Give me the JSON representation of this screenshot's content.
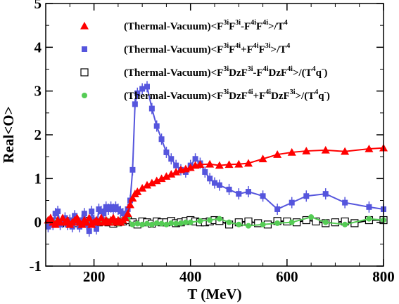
{
  "chart_data": {
    "type": "line",
    "xlabel": "T (MeV)",
    "ylabel": "Real<O>",
    "xlim": [
      100,
      800
    ],
    "ylim": [
      -1,
      5
    ],
    "x_ticks": [
      200,
      400,
      600,
      800
    ],
    "y_ticks": [
      -1,
      0,
      1,
      2,
      3,
      4,
      5
    ],
    "grid": false,
    "legend_position": "top-center",
    "series": [
      {
        "name": "(Thermal-Vacuum)<F^{3i}F^{3i}-F^{4i}F^{4i}>/T^4",
        "color": "#ff0000",
        "marker": "triangle",
        "x": [
          105,
          110,
          115,
          120,
          125,
          130,
          135,
          140,
          145,
          150,
          155,
          160,
          165,
          170,
          175,
          180,
          185,
          190,
          195,
          200,
          205,
          210,
          215,
          220,
          225,
          230,
          235,
          240,
          245,
          250,
          255,
          260,
          265,
          270,
          275,
          280,
          285,
          290,
          300,
          310,
          320,
          330,
          340,
          350,
          360,
          370,
          380,
          390,
          400,
          410,
          420,
          440,
          460,
          480,
          500,
          520,
          550,
          580,
          610,
          640,
          680,
          720,
          770,
          800
        ],
        "y": [
          0.05,
          0.1,
          0.0,
          -0.05,
          0.05,
          0.0,
          0.1,
          0.0,
          0.05,
          -0.05,
          0.0,
          0.05,
          0.1,
          0.0,
          -0.05,
          0.05,
          0.0,
          0.1,
          -0.05,
          0.0,
          0.05,
          0.0,
          0.1,
          0.0,
          0.05,
          0.0,
          0.05,
          0.1,
          0.0,
          0.05,
          0.0,
          0.05,
          0.1,
          0.2,
          0.4,
          0.55,
          0.65,
          0.7,
          0.78,
          0.85,
          0.9,
          0.95,
          1.0,
          1.05,
          1.1,
          1.15,
          1.2,
          1.22,
          1.25,
          1.3,
          1.32,
          1.33,
          1.3,
          1.32,
          1.33,
          1.35,
          1.45,
          1.55,
          1.6,
          1.63,
          1.65,
          1.62,
          1.68,
          1.7
        ]
      },
      {
        "name": "(Thermal-Vacuum)<F^{3i}F^{4i}+F^{4i}F^{3i}>/T^4",
        "color": "#5555dd",
        "marker": "square",
        "x": [
          105,
          110,
          115,
          120,
          125,
          130,
          135,
          140,
          145,
          150,
          155,
          160,
          165,
          170,
          175,
          180,
          185,
          190,
          195,
          200,
          205,
          210,
          215,
          220,
          225,
          230,
          235,
          240,
          245,
          250,
          255,
          260,
          265,
          270,
          275,
          280,
          285,
          290,
          300,
          310,
          320,
          330,
          340,
          350,
          360,
          370,
          380,
          390,
          400,
          410,
          420,
          430,
          440,
          450,
          460,
          480,
          500,
          520,
          550,
          580,
          610,
          640,
          680,
          720,
          770,
          800
        ],
        "y": [
          -0.1,
          0.05,
          -0.05,
          0.2,
          0.25,
          -0.05,
          0.0,
          0.1,
          -0.05,
          0.05,
          -0.1,
          0.15,
          0.0,
          -0.1,
          0.05,
          0.2,
          -0.05,
          -0.2,
          0.25,
          0.05,
          -0.15,
          0.3,
          0.25,
          0.2,
          0.35,
          0.3,
          0.35,
          0.3,
          0.35,
          0.3,
          0.25,
          0.2,
          0.15,
          0.3,
          0.5,
          1.2,
          2.7,
          2.95,
          3.05,
          3.1,
          2.6,
          2.2,
          1.9,
          1.6,
          1.45,
          1.3,
          1.2,
          1.15,
          1.3,
          1.45,
          1.35,
          1.15,
          1.0,
          0.9,
          0.85,
          0.75,
          0.65,
          0.7,
          0.6,
          0.3,
          0.45,
          0.6,
          0.65,
          0.45,
          0.35,
          0.3
        ]
      },
      {
        "name": "(Thermal-Vacuum)<F^{3i}DzF^{3i}-F^{4i}DzF^{4i}>/(T^4q^-)",
        "color": "#000000",
        "marker": "open-square",
        "x": [
          110,
          120,
          130,
          140,
          150,
          160,
          170,
          180,
          190,
          200,
          210,
          220,
          230,
          240,
          250,
          260,
          270,
          280,
          290,
          300,
          310,
          320,
          330,
          340,
          350,
          360,
          370,
          380,
          390,
          400,
          410,
          420,
          430,
          440,
          450,
          460,
          480,
          500,
          520,
          540,
          560,
          580,
          600,
          620,
          640,
          660,
          680,
          700,
          720,
          740,
          770,
          800
        ],
        "y": [
          0.0,
          0.02,
          -0.02,
          0.03,
          0.0,
          -0.02,
          0.02,
          0.0,
          0.03,
          -0.02,
          0.0,
          0.02,
          0.0,
          -0.03,
          0.0,
          0.02,
          0.05,
          0.0,
          -0.05,
          0.02,
          0.0,
          -0.03,
          0.02,
          0.0,
          0.0,
          0.03,
          -0.02,
          0.0,
          0.03,
          0.05,
          0.02,
          0.0,
          0.0,
          0.02,
          0.05,
          0.03,
          -0.05,
          0.0,
          0.02,
          -0.02,
          -0.05,
          0.03,
          0.02,
          0.0,
          0.05,
          0.02,
          -0.02,
          0.0,
          0.02,
          -0.02,
          0.05,
          0.05
        ]
      },
      {
        "name": "(Thermal-Vacuum)<F^{3i}DzF^{4i}+F^{4i}DzF^{3i}>/(T^4q^-)",
        "color": "#55cc55",
        "marker": "circle",
        "x": [
          110,
          120,
          130,
          140,
          150,
          160,
          170,
          180,
          190,
          200,
          210,
          220,
          230,
          240,
          250,
          260,
          270,
          280,
          290,
          300,
          310,
          320,
          330,
          340,
          350,
          360,
          370,
          380,
          390,
          400,
          420,
          440,
          460,
          480,
          500,
          520,
          550,
          580,
          610,
          650,
          680,
          720,
          770,
          800
        ],
        "y": [
          0.02,
          0.0,
          -0.03,
          0.02,
          0.0,
          0.05,
          -0.02,
          0.02,
          0.0,
          0.03,
          -0.02,
          0.0,
          0.03,
          0.0,
          -0.03,
          0.02,
          0.1,
          -0.05,
          -0.03,
          -0.05,
          -0.03,
          -0.05,
          -0.02,
          -0.03,
          -0.05,
          -0.02,
          -0.03,
          -0.02,
          0.0,
          0.0,
          0.03,
          0.05,
          0.08,
          0.0,
          -0.05,
          -0.08,
          -0.05,
          -0.02,
          0.0,
          0.12,
          0.0,
          -0.05,
          0.08,
          0.05
        ]
      }
    ]
  },
  "legend": [
    {
      "name": "legend-thermal-vacuum-f3f3-minus-f4f4",
      "parts": [
        [
          "(Thermal-Vacuum)<F",
          ""
        ],
        [
          "3i",
          "sup"
        ],
        [
          "F",
          ""
        ],
        [
          "3i",
          "sup"
        ],
        [
          "-F",
          ""
        ],
        [
          "4i",
          "sup"
        ],
        [
          "F",
          ""
        ],
        [
          "4i",
          "sup"
        ],
        [
          ">/T",
          ""
        ],
        [
          "4",
          "sup"
        ]
      ]
    },
    {
      "name": "legend-thermal-vacuum-f3f4-plus-f4f3",
      "parts": [
        [
          "(Thermal-Vacuum)<F",
          ""
        ],
        [
          "3i",
          "sup"
        ],
        [
          "F",
          ""
        ],
        [
          "4i",
          "sup"
        ],
        [
          "+F",
          ""
        ],
        [
          "4i",
          "sup"
        ],
        [
          "F",
          ""
        ],
        [
          "3i",
          "sup"
        ],
        [
          ">/T",
          ""
        ],
        [
          "4",
          "sup"
        ]
      ]
    },
    {
      "name": "legend-thermal-vacuum-f3dzf3-minus-f4dzf4",
      "parts": [
        [
          "(Thermal-Vacuum)<F",
          ""
        ],
        [
          "3i",
          "sup"
        ],
        [
          "DzF",
          ""
        ],
        [
          "3i",
          "sup"
        ],
        [
          "-F",
          ""
        ],
        [
          "4i",
          "sup"
        ],
        [
          "DzF",
          ""
        ],
        [
          "4i",
          "sup"
        ],
        [
          ">/(T",
          ""
        ],
        [
          "4",
          "sup"
        ],
        [
          "q",
          ""
        ],
        [
          "-",
          "sup"
        ],
        [
          ")",
          ""
        ]
      ]
    },
    {
      "name": "legend-thermal-vacuum-f3dzf4-plus-f4dzf3",
      "parts": [
        [
          "(Thermal-Vacuum)<F",
          ""
        ],
        [
          "3i",
          "sup"
        ],
        [
          "DzF",
          ""
        ],
        [
          "4i",
          "sup"
        ],
        [
          "+F",
          ""
        ],
        [
          "4i",
          "sup"
        ],
        [
          "DzF",
          ""
        ],
        [
          "3i",
          "sup"
        ],
        [
          ">/(T",
          ""
        ],
        [
          "4",
          "sup"
        ],
        [
          "q",
          ""
        ],
        [
          "-",
          "sup"
        ],
        [
          ")",
          ""
        ]
      ]
    }
  ]
}
